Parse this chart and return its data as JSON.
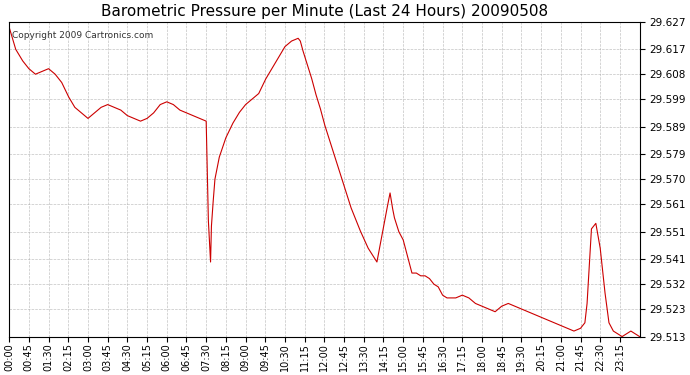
{
  "title": "Barometric Pressure per Minute (Last 24 Hours) 20090508",
  "copyright_text": "Copyright 2009 Cartronics.com",
  "line_color": "#cc0000",
  "background_color": "#ffffff",
  "grid_color": "#aaaaaa",
  "ylim": [
    29.513,
    29.627
  ],
  "yticks": [
    29.627,
    29.617,
    29.608,
    29.599,
    29.589,
    29.579,
    29.57,
    29.561,
    29.551,
    29.541,
    29.532,
    29.523,
    29.513
  ],
  "xtick_labels": [
    "00:00",
    "00:45",
    "01:30",
    "02:15",
    "03:00",
    "03:45",
    "04:30",
    "05:15",
    "06:00",
    "06:45",
    "07:30",
    "08:15",
    "09:00",
    "09:45",
    "10:30",
    "11:15",
    "12:00",
    "12:45",
    "13:30",
    "14:15",
    "15:00",
    "15:45",
    "16:30",
    "17:15",
    "18:00",
    "18:45",
    "19:30",
    "20:15",
    "21:00",
    "21:45",
    "22:30",
    "23:15"
  ],
  "anchors_x": [
    0,
    15,
    30,
    45,
    60,
    75,
    90,
    105,
    120,
    135,
    150,
    165,
    180,
    195,
    210,
    225,
    240,
    255,
    270,
    285,
    300,
    315,
    330,
    345,
    360,
    375,
    390,
    405,
    420,
    435,
    450,
    455,
    460,
    462,
    465,
    470,
    480,
    495,
    510,
    525,
    540,
    555,
    570,
    585,
    600,
    615,
    630,
    645,
    660,
    665,
    670,
    680,
    690,
    700,
    710,
    720,
    740,
    760,
    780,
    800,
    820,
    840,
    860,
    870,
    875,
    880,
    890,
    900,
    910,
    920,
    930,
    940,
    950,
    960,
    970,
    980,
    990,
    1000,
    1020,
    1035,
    1050,
    1065,
    1080,
    1095,
    1110,
    1125,
    1140,
    1155,
    1170,
    1185,
    1200,
    1215,
    1230,
    1245,
    1260,
    1275,
    1290,
    1305,
    1315,
    1320,
    1330,
    1340,
    1350,
    1360,
    1370,
    1380,
    1390,
    1400,
    1410,
    1420,
    1430,
    1440
  ],
  "anchors_y": [
    29.625,
    29.617,
    29.613,
    29.61,
    29.608,
    29.609,
    29.61,
    29.608,
    29.605,
    29.6,
    29.596,
    29.594,
    29.592,
    29.594,
    29.596,
    29.597,
    29.596,
    29.595,
    29.593,
    29.592,
    29.591,
    29.592,
    29.594,
    29.597,
    29.598,
    29.597,
    29.595,
    29.594,
    29.593,
    29.592,
    29.591,
    29.555,
    29.54,
    29.553,
    29.56,
    29.57,
    29.578,
    29.585,
    29.59,
    29.594,
    29.597,
    29.599,
    29.601,
    29.606,
    29.61,
    29.614,
    29.618,
    29.62,
    29.621,
    29.62,
    29.617,
    29.612,
    29.607,
    29.601,
    29.596,
    29.59,
    29.58,
    29.57,
    29.56,
    29.552,
    29.545,
    29.54,
    29.557,
    29.565,
    29.56,
    29.556,
    29.551,
    29.548,
    29.542,
    29.536,
    29.536,
    29.535,
    29.535,
    29.534,
    29.532,
    29.531,
    29.528,
    29.527,
    29.527,
    29.528,
    29.527,
    29.525,
    29.524,
    29.523,
    29.522,
    29.524,
    29.525,
    29.524,
    29.523,
    29.522,
    29.521,
    29.52,
    29.519,
    29.518,
    29.517,
    29.516,
    29.515,
    29.516,
    29.518,
    29.525,
    29.552,
    29.554,
    29.545,
    29.53,
    29.518,
    29.515,
    29.514,
    29.513,
    29.514,
    29.515,
    29.514,
    29.513
  ]
}
